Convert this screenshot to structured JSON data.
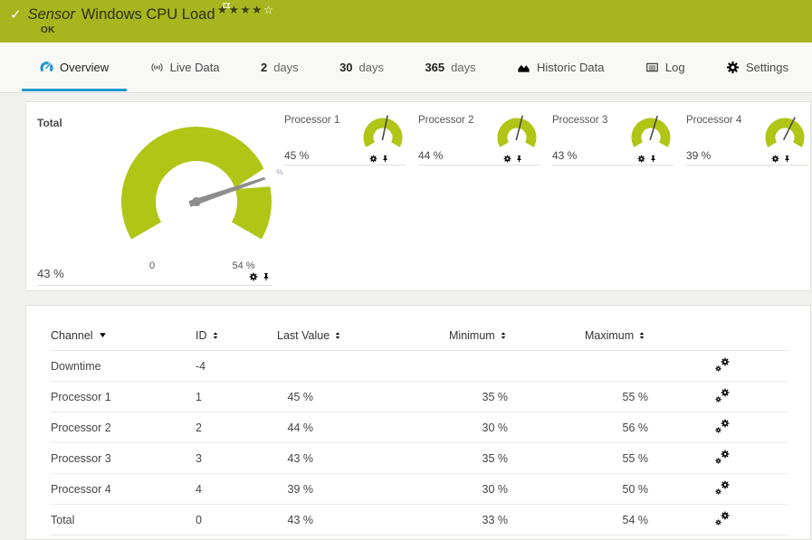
{
  "colors": {
    "header_green": "#a7b61e",
    "gauge_green": "#b0c516",
    "accent_blue": "#2399cf",
    "needle_gray": "#8e8e8e"
  },
  "header": {
    "check_icon": "✓",
    "kind_label": "Sensor",
    "title": "Windows CPU Load",
    "status": "OK",
    "priority": {
      "filled": 4,
      "total": 5
    },
    "star_filled_char": "★",
    "star_empty_char": "☆"
  },
  "tabs": [
    {
      "label": "Overview",
      "active": true
    },
    {
      "label": "Live Data"
    },
    {
      "num": "2",
      "unit": "days"
    },
    {
      "num": "30",
      "unit": "days"
    },
    {
      "num": "365",
      "unit": "days"
    },
    {
      "label": "Historic Data"
    },
    {
      "label": "Log"
    },
    {
      "label": "Settings"
    }
  ],
  "gauges": {
    "total": {
      "name": "Total",
      "value": 43,
      "value_label": "43 %",
      "unit": "%",
      "min": 0,
      "max": 54,
      "min_label": "0",
      "max_label": "54 %"
    },
    "small": [
      {
        "name": "Processor 1",
        "value": 45,
        "value_label": "45 %"
      },
      {
        "name": "Processor 2",
        "value": 44,
        "value_label": "44 %"
      },
      {
        "name": "Processor 3",
        "value": 43,
        "value_label": "43 %"
      },
      {
        "name": "Processor 4",
        "value": 39,
        "value_label": "39 %"
      }
    ]
  },
  "table": {
    "columns": [
      {
        "label": "Channel",
        "sort": "desc"
      },
      {
        "label": "ID",
        "sort": "none"
      },
      {
        "label": "Last Value",
        "sort": "none"
      },
      {
        "label": "Minimum",
        "sort": "none"
      },
      {
        "label": "Maximum",
        "sort": "none"
      }
    ],
    "rows": [
      {
        "channel": "Downtime",
        "id": "-4",
        "last": "",
        "min": "",
        "max": ""
      },
      {
        "channel": "Processor 1",
        "id": "1",
        "last": "45 %",
        "min": "35 %",
        "max": "55 %"
      },
      {
        "channel": "Processor 2",
        "id": "2",
        "last": "44 %",
        "min": "30 %",
        "max": "56 %"
      },
      {
        "channel": "Processor 3",
        "id": "3",
        "last": "43 %",
        "min": "35 %",
        "max": "55 %"
      },
      {
        "channel": "Processor 4",
        "id": "4",
        "last": "39 %",
        "min": "30 %",
        "max": "50 %"
      },
      {
        "channel": "Total",
        "id": "0",
        "last": "43 %",
        "min": "33 %",
        "max": "54 %"
      }
    ]
  }
}
